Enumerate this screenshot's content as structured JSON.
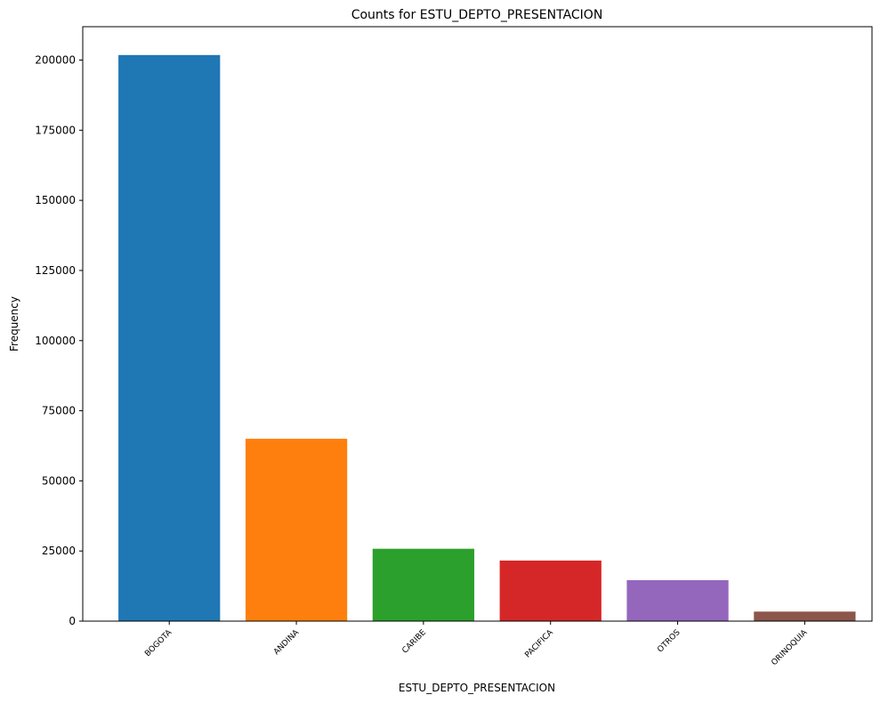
{
  "chart_data": {
    "type": "bar",
    "title": "Counts for ESTU_DEPTO_PRESENTACION",
    "xlabel": "ESTU_DEPTO_PRESENTACION",
    "ylabel": "Frequency",
    "categories": [
      "BOGOTA",
      "ANDINA",
      "CARIBE",
      "PACIFICA",
      "OTROS",
      "ORINOQUIA"
    ],
    "values": [
      201800,
      65000,
      25800,
      21600,
      14600,
      3400
    ],
    "colors": [
      "#1f77b4",
      "#ff7f0e",
      "#2ca02c",
      "#d62728",
      "#9467bd",
      "#8c564b"
    ],
    "ylim": [
      0,
      211900
    ],
    "yticks": [
      0,
      25000,
      50000,
      75000,
      100000,
      125000,
      150000,
      175000,
      200000
    ],
    "grid": false,
    "legend": "none"
  }
}
